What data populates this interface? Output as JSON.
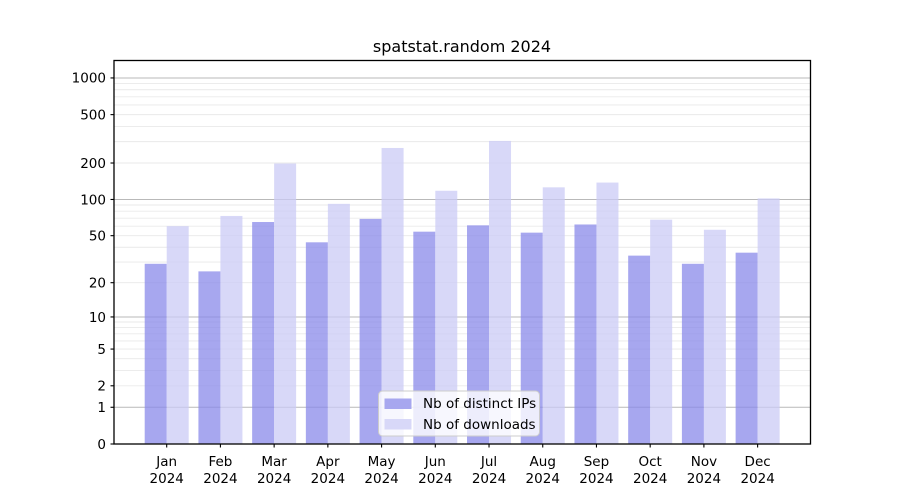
{
  "figure": {
    "title": "spatstat.random 2024"
  },
  "chart_data": {
    "type": "bar",
    "title": "spatstat.random 2024",
    "scale": "log1p",
    "ylim": [
      0,
      1380
    ],
    "grid": "both",
    "legend_position": "lower-center",
    "categories": [
      "Jan",
      "Feb",
      "Mar",
      "Apr",
      "May",
      "Jun",
      "Jul",
      "Aug",
      "Sep",
      "Oct",
      "Nov",
      "Dec"
    ],
    "year_label": "2024",
    "y_ticks": [
      {
        "value": 0,
        "label": "0"
      },
      {
        "value": 1,
        "label": "1"
      },
      {
        "value": 2,
        "label": "2"
      },
      {
        "value": 5,
        "label": "5"
      },
      {
        "value": 10,
        "label": "10"
      },
      {
        "value": 20,
        "label": "20"
      },
      {
        "value": 50,
        "label": "50"
      },
      {
        "value": 100,
        "label": "100"
      },
      {
        "value": 200,
        "label": "200"
      },
      {
        "value": 500,
        "label": "500"
      },
      {
        "value": 1000,
        "label": "1000"
      }
    ],
    "series": [
      {
        "name": "Nb of distinct IPs",
        "swatch_color": "#a7a7ef",
        "bar_fill": "rgba(138,138,233,0.75)",
        "values": [
          29,
          25,
          65,
          44,
          69,
          54,
          61,
          53,
          62,
          34,
          29,
          36
        ]
      },
      {
        "name": "Nb of downloads",
        "swatch_color": "#d8d8f8",
        "bar_fill": "rgba(203,203,245,0.75)",
        "values": [
          60,
          73,
          198,
          92,
          266,
          118,
          304,
          126,
          138,
          68,
          56,
          102
        ]
      }
    ],
    "colors": {
      "major_grid": "#b9b9b9",
      "minor_grid": "#e9e9e9",
      "frame": "#000000",
      "text": "#000000",
      "legend_border": "#cccccc",
      "legend_bg": "rgba(255,255,255,0.8)"
    }
  }
}
